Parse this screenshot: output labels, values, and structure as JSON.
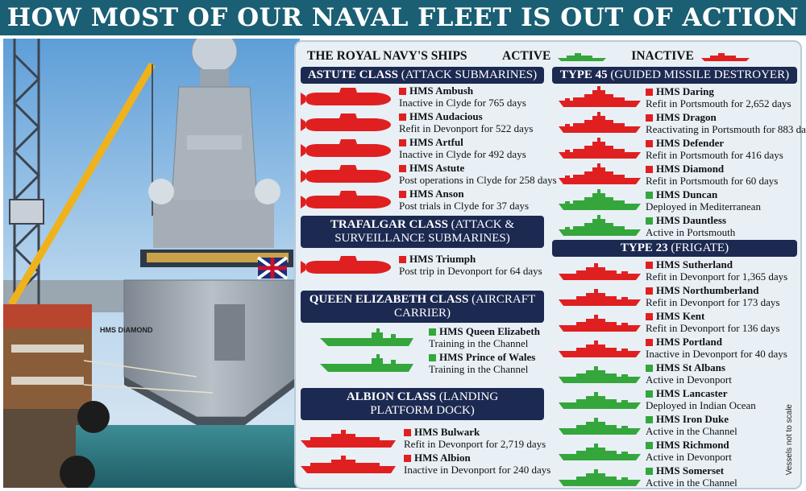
{
  "title": "HOW MOST OF OUR NAVAL FLEET IS OUT OF ACTION",
  "legend": {
    "heading": "THE ROYAL NAVY'S SHIPS",
    "active_label": "ACTIVE",
    "inactive_label": "INACTIVE"
  },
  "colors": {
    "active": "#35a63c",
    "inactive": "#e02020",
    "header_bg": "#1c2951",
    "title_bg": "#1a5f73"
  },
  "side_note": "Vessels not to scale",
  "classes": {
    "astute": {
      "name": "ASTUTE CLASS",
      "sub": "(ATTACK SUBMARINES)",
      "ships": [
        {
          "name": "HMS Ambush",
          "status": "Inactive in Clyde for 765 days",
          "active": false
        },
        {
          "name": "HMS Audacious",
          "status": "Refit in Devonport for 522 days",
          "active": false
        },
        {
          "name": "HMS Artful",
          "status": "Inactive in Clyde for 492 days",
          "active": false
        },
        {
          "name": "HMS Astute",
          "status": "Post operations in Clyde for 258 days",
          "active": false
        },
        {
          "name": "HMS Anson",
          "status": "Post trials in Clyde for 37 days",
          "active": false
        }
      ]
    },
    "trafalgar": {
      "name": "TRAFALGAR CLASS",
      "sub": "(ATTACK &",
      "sub2": "SURVEILLANCE SUBMARINES)",
      "ships": [
        {
          "name": "HMS Triumph",
          "status": "Post trip in Devonport for 64 days",
          "active": false
        }
      ]
    },
    "queen_elizabeth": {
      "name": "QUEEN ELIZABETH CLASS",
      "sub": "(AIRCRAFT CARRIER)",
      "ships": [
        {
          "name": "HMS Queen Elizabeth",
          "status": "Training in the Channel",
          "active": true
        },
        {
          "name": "HMS Prince of Wales",
          "status": "Training in the Channel",
          "active": true
        }
      ]
    },
    "albion": {
      "name": "ALBION CLASS",
      "sub": "(LANDING",
      "sub2": "PLATFORM DOCK)",
      "ships": [
        {
          "name": "HMS Bulwark",
          "status": "Refit in Devonport for 2,719 days",
          "active": false
        },
        {
          "name": "HMS Albion",
          "status": "Inactive in Devonport for 240 days",
          "active": false
        }
      ]
    },
    "type45": {
      "name": "TYPE 45",
      "sub": "(GUIDED MISSILE DESTROYER)",
      "ships": [
        {
          "name": "HMS Daring",
          "status": "Refit in Portsmouth for 2,652 days",
          "active": false
        },
        {
          "name": "HMS Dragon",
          "status": "Reactivating in Portsmouth for 883 days",
          "active": false
        },
        {
          "name": "HMS Defender",
          "status": "Refit in Portsmouth for 416 days",
          "active": false
        },
        {
          "name": "HMS Diamond",
          "status": "Refit in Portsmouth for 60 days",
          "active": false
        },
        {
          "name": "HMS Duncan",
          "status": "Deployed in Mediterranean",
          "active": true
        },
        {
          "name": "HMS Dauntless",
          "status": "Active in Portsmouth",
          "active": true
        }
      ]
    },
    "type23": {
      "name": "TYPE 23",
      "sub": "(FRIGATE)",
      "ships": [
        {
          "name": "HMS Sutherland",
          "status": "Refit in Devonport for 1,365 days",
          "active": false
        },
        {
          "name": "HMS Northumberland",
          "status": "Refit in Devonport for 173 days",
          "active": false
        },
        {
          "name": "HMS Kent",
          "status": "Refit in Devonport for 136 days",
          "active": false
        },
        {
          "name": "HMS Portland",
          "status": "Inactive in Devonport for 40 days",
          "active": false
        },
        {
          "name": "HMS St Albans",
          "status": "Active in Devonport",
          "active": true
        },
        {
          "name": "HMS Lancaster",
          "status": "Deployed in Indian Ocean",
          "active": true
        },
        {
          "name": "HMS Iron Duke",
          "status": "Active in the Channel",
          "active": true
        },
        {
          "name": "HMS Richmond",
          "status": "Active in Devonport",
          "active": true
        },
        {
          "name": "HMS Somerset",
          "status": "Active in the Channel",
          "active": true
        }
      ]
    }
  }
}
